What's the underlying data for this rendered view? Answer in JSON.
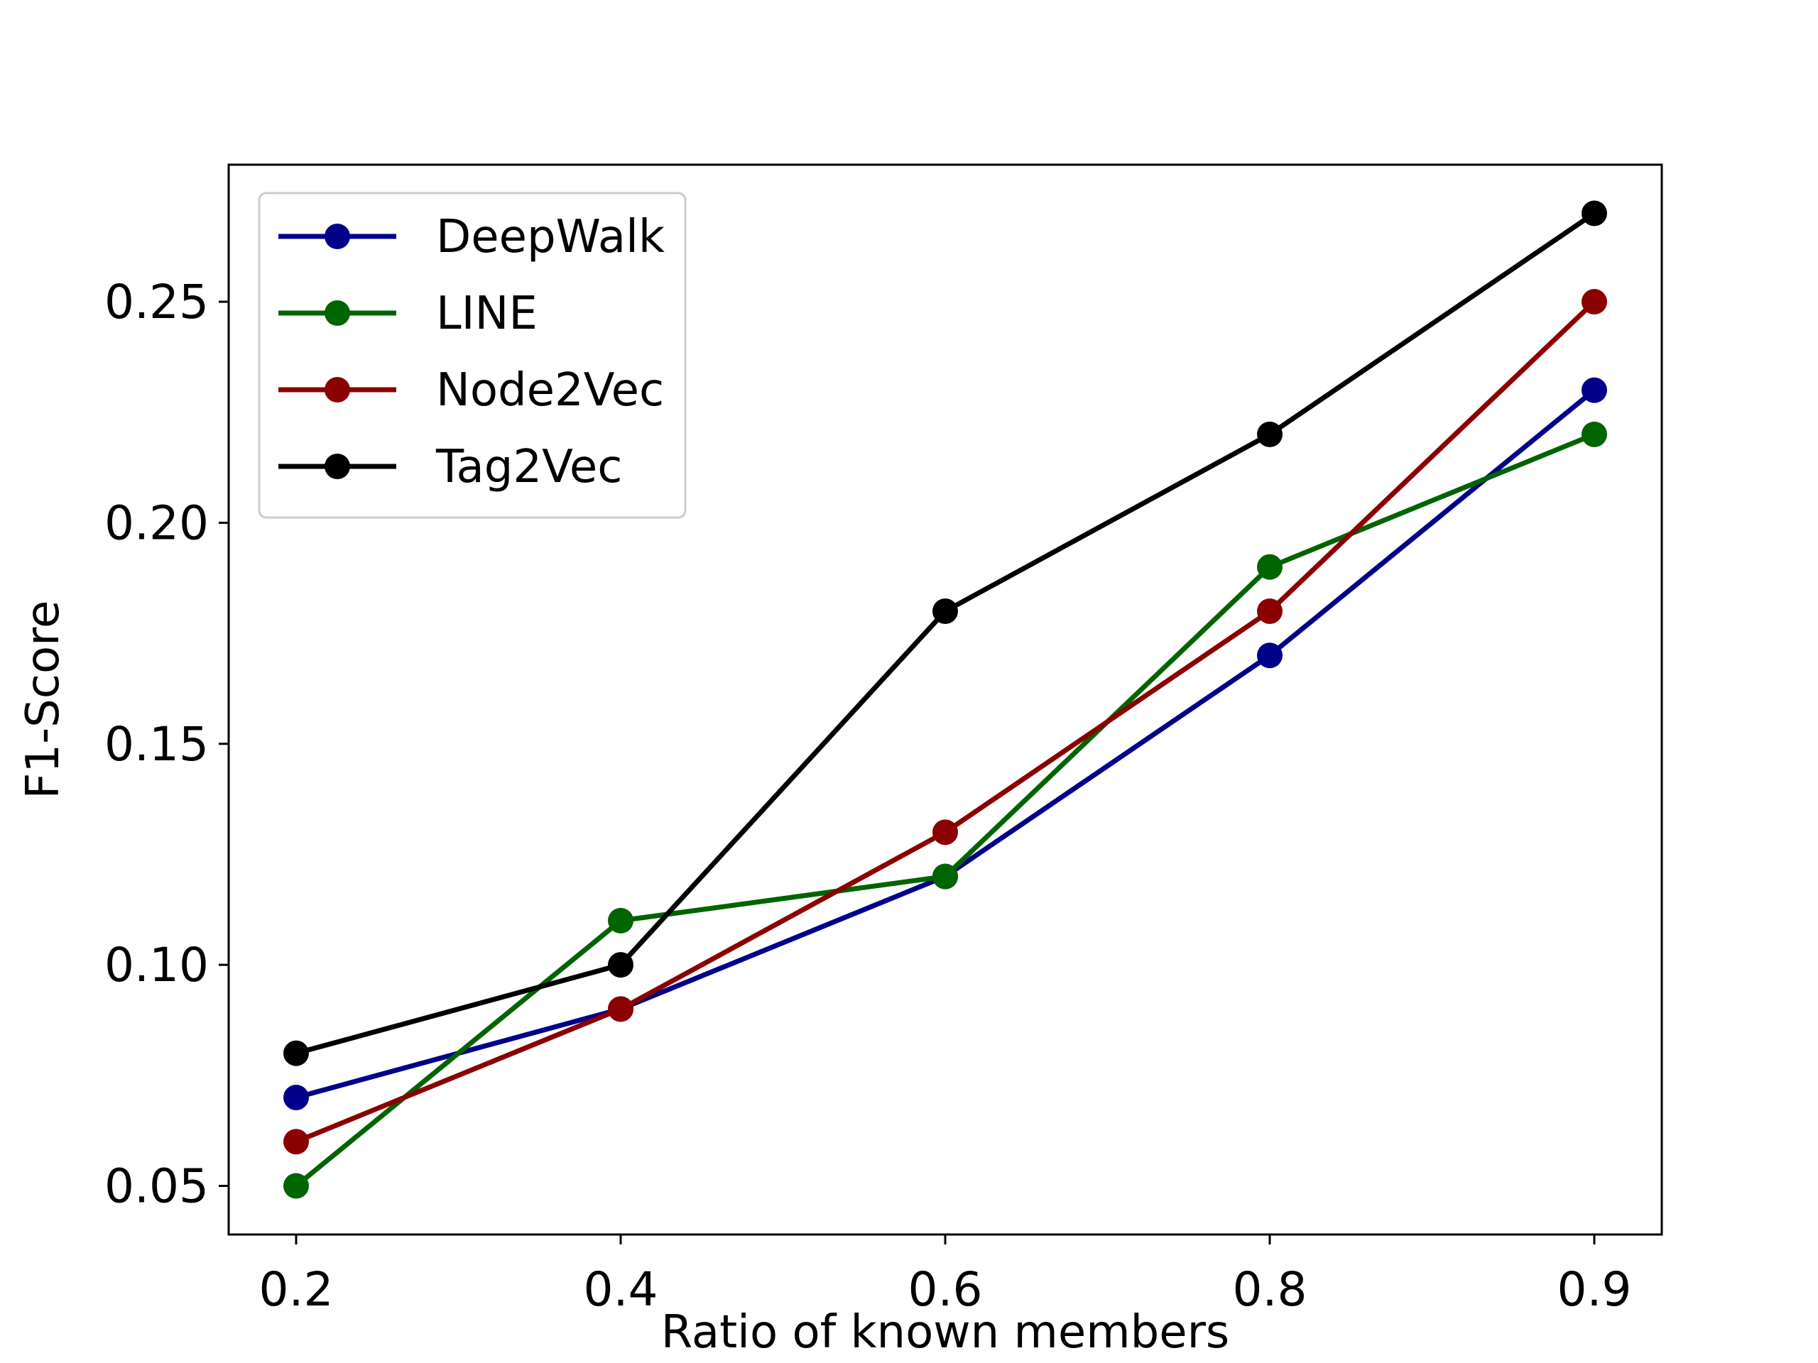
{
  "chart_data": {
    "type": "line",
    "title": "",
    "xlabel": "Ratio of known members",
    "ylabel": "F1-Score",
    "categories": [
      "0.2",
      "0.4",
      "0.6",
      "0.8",
      "0.9"
    ],
    "ylim": [
      0.039,
      0.281
    ],
    "yticks": [
      0.05,
      0.1,
      0.15,
      0.2,
      0.25
    ],
    "ytick_labels": [
      "0.05",
      "0.10",
      "0.15",
      "0.20",
      "0.25"
    ],
    "grid": false,
    "legend_position": "top-left",
    "series": [
      {
        "name": "DeepWalk",
        "color": "#00008b",
        "values": [
          0.07,
          0.09,
          0.12,
          0.17,
          0.23
        ]
      },
      {
        "name": "LINE",
        "color": "#006400",
        "values": [
          0.05,
          0.11,
          0.12,
          0.19,
          0.22
        ]
      },
      {
        "name": "Node2Vec",
        "color": "#8b0000",
        "values": [
          0.06,
          0.09,
          0.13,
          0.18,
          0.25
        ]
      },
      {
        "name": "Tag2Vec",
        "color": "#000000",
        "values": [
          0.08,
          0.1,
          0.18,
          0.22,
          0.27
        ]
      }
    ]
  }
}
